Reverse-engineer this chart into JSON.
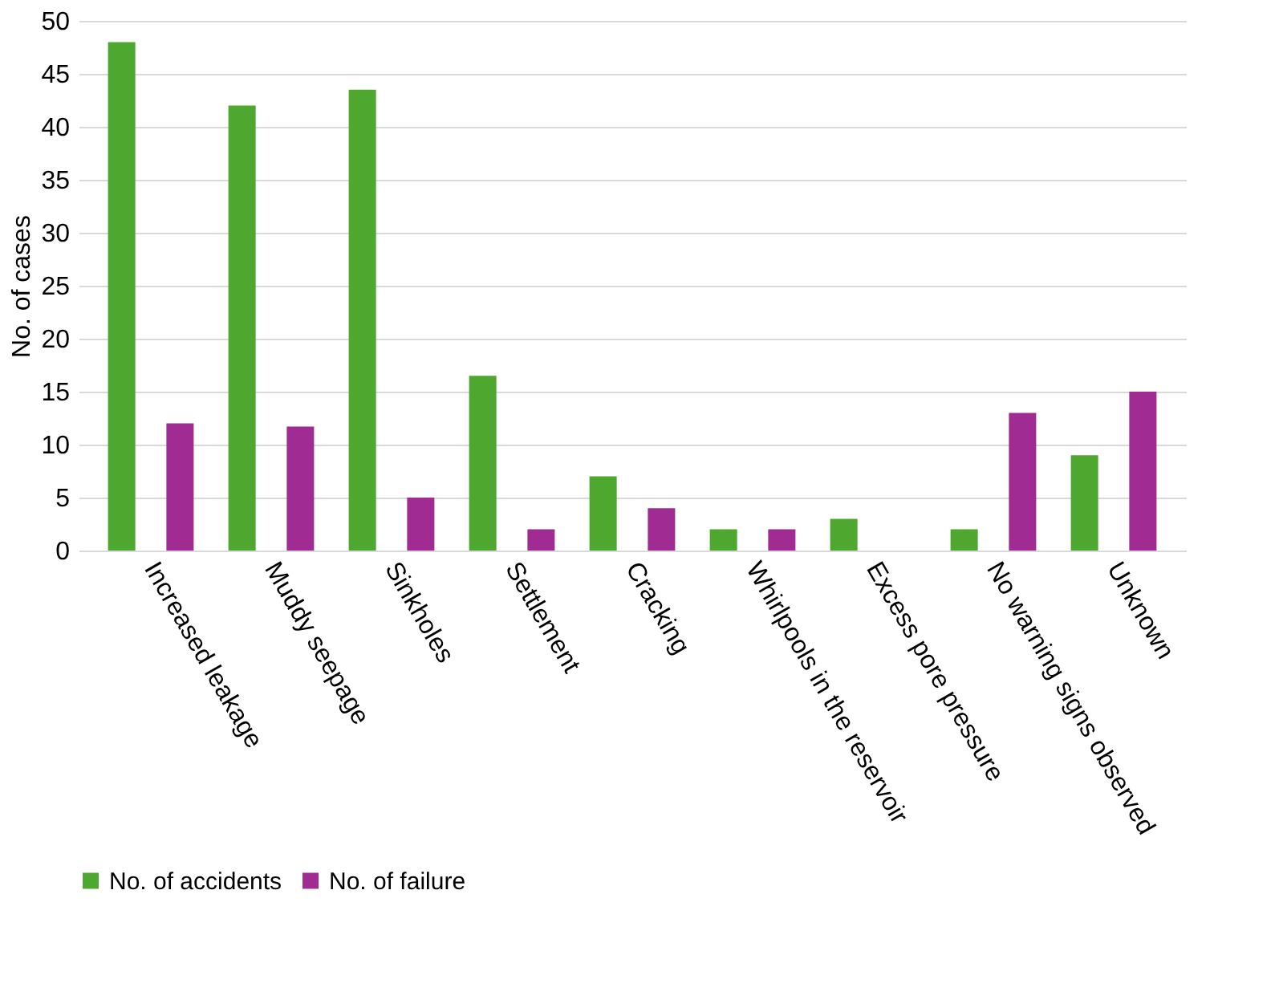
{
  "chart_data": {
    "type": "bar",
    "ylabel": "No. of cases",
    "categories": [
      "Increased leakage",
      "Muddy seepage",
      "Sinkholes",
      "Settlement",
      "Cracking",
      "Whirlpools in the reservoir",
      "Excess pore pressure",
      "No warning signs observed",
      "Unknown"
    ],
    "series": [
      {
        "name": "No. of accidents",
        "color": "#4ea72e",
        "values": [
          48,
          42,
          43.5,
          16.5,
          7,
          2,
          3,
          2,
          9
        ]
      },
      {
        "name": "No. of failure",
        "color": "#a02b93",
        "values": [
          12,
          11.7,
          5,
          2,
          4,
          2,
          0,
          13,
          15
        ]
      }
    ],
    "ylim": [
      0,
      50
    ],
    "yticks": [
      0,
      5,
      10,
      15,
      20,
      25,
      30,
      35,
      40,
      45,
      50
    ],
    "grid": "y",
    "legend": "bottom"
  }
}
